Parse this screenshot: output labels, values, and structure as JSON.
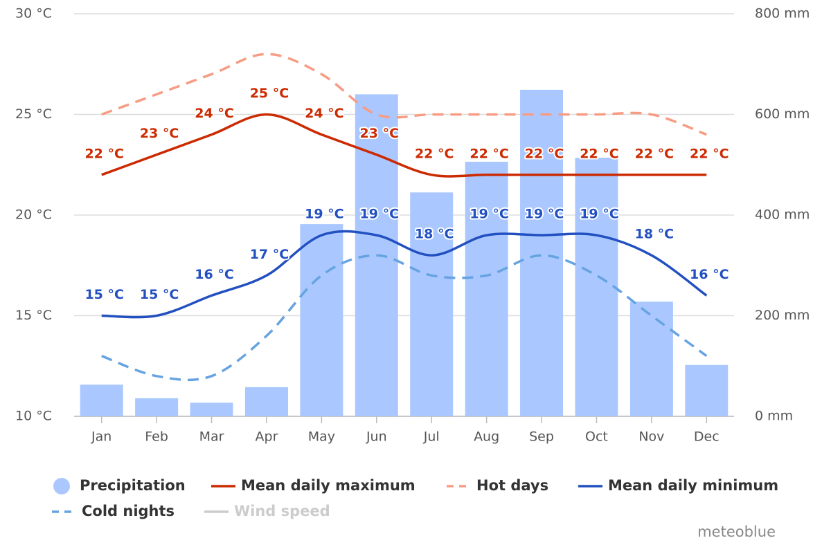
{
  "chart_data": {
    "type": "combo",
    "categories": [
      "Jan",
      "Feb",
      "Mar",
      "Apr",
      "May",
      "Jun",
      "Jul",
      "Aug",
      "Sep",
      "Oct",
      "Nov",
      "Dec"
    ],
    "ylim": [
      10,
      30
    ],
    "yticks": [
      {
        "value": 10,
        "label": "10 °C"
      },
      {
        "value": 15,
        "label": "15 °C"
      },
      {
        "value": 20,
        "label": "20 °C"
      },
      {
        "value": 25,
        "label": "25 °C"
      },
      {
        "value": 30,
        "label": "30 °C"
      }
    ],
    "y2lim": [
      0,
      800
    ],
    "y2ticks": [
      {
        "value": 0,
        "label": "0 mm"
      },
      {
        "value": 200,
        "label": "200 mm"
      },
      {
        "value": 400,
        "label": "400 mm"
      },
      {
        "value": 600,
        "label": "600 mm"
      },
      {
        "value": 800,
        "label": "800 mm"
      }
    ],
    "grid": true,
    "credit": "meteoblue",
    "series": [
      {
        "name": "Precipitation",
        "type": "bar",
        "axis": "y2",
        "color": "#aac8ff",
        "values": [
          63,
          36,
          27,
          58,
          382,
          640,
          445,
          506,
          649,
          514,
          228,
          102
        ]
      },
      {
        "name": "Mean daily maximum",
        "type": "line",
        "color": "#cc2a00",
        "values": [
          22,
          23,
          24,
          25,
          24,
          23,
          22,
          22,
          22,
          22,
          22,
          22
        ],
        "value_labels": [
          "22 °C",
          "23 °C",
          "24 °C",
          "25 °C",
          "24 °C",
          "23 °C",
          "22 °C",
          "22 °C",
          "22 °C",
          "22 °C",
          "22 °C",
          "22 °C"
        ]
      },
      {
        "name": "Hot days",
        "type": "line",
        "dashed": true,
        "color": "#f79c84",
        "values": [
          25,
          26,
          27,
          28,
          27,
          25,
          25,
          25,
          25,
          25,
          25,
          24
        ]
      },
      {
        "name": "Mean daily minimum",
        "type": "line",
        "color": "#2250c0",
        "values": [
          15,
          15,
          16,
          17,
          19,
          19,
          18,
          19,
          19,
          19,
          18,
          16
        ],
        "value_labels": [
          "15 °C",
          "15 °C",
          "16 °C",
          "17 °C",
          "19 °C",
          "19 °C",
          "18 °C",
          "19 °C",
          "19 °C",
          "19 °C",
          "18 °C",
          "16 °C"
        ]
      },
      {
        "name": "Cold nights",
        "type": "line",
        "dashed": true,
        "color": "#66a3e0",
        "values": [
          13,
          12,
          12,
          14,
          17,
          18,
          17,
          17,
          18,
          17,
          15,
          13
        ]
      },
      {
        "name": "Wind speed",
        "type": "line",
        "hidden": true,
        "color": "#cccccc"
      }
    ]
  }
}
